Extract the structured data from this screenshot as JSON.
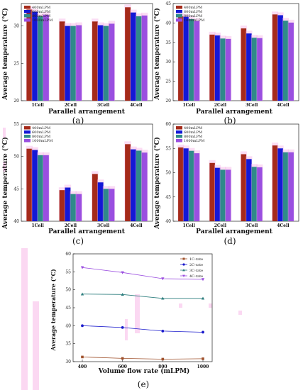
{
  "colors": {
    "400mLPM": "#a52a1a",
    "600mLPM": "#1418d6",
    "800mLPM": "#2f8a8a",
    "1000mLPM": "#9a4fe0",
    "1C": "#a0522d",
    "2C": "#1a1acc",
    "3C": "#2f7f7f",
    "4C": "#9b4ee0"
  },
  "chart_data": [
    {
      "panel": "(a)",
      "type": "bar",
      "ylabel": "Average temperature (°C)",
      "xlabel": "Parallel arrangement",
      "categories": [
        "1Cell",
        "2Cell",
        "3Cell",
        "4Cell"
      ],
      "ylim": [
        20,
        33
      ],
      "yticks": [
        "20",
        "25",
        "30"
      ],
      "series": [
        {
          "name": "400mLPM",
          "values": [
            32.2,
            30.6,
            30.6,
            32.5
          ]
        },
        {
          "name": "600mLPM",
          "values": [
            31.9,
            30.0,
            30.1,
            31.8
          ]
        },
        {
          "name": "800mLPM",
          "values": [
            31.3,
            30.0,
            30.0,
            31.3
          ]
        },
        {
          "name": "1000mLPM",
          "values": [
            31.5,
            30.1,
            30.3,
            31.4
          ]
        }
      ],
      "legend": "top-left"
    },
    {
      "panel": "(b)",
      "type": "bar",
      "ylabel": "Average temperature (°C)",
      "xlabel": "Parallel arrangement",
      "categories": [
        "1Cell",
        "2Cell",
        "3Cell",
        "4Cell"
      ],
      "ylim": [
        20,
        45
      ],
      "yticks": [
        "20",
        "25",
        "30",
        "35",
        "40",
        "45"
      ],
      "series": [
        {
          "name": "400mLPM",
          "values": [
            41.7,
            37.0,
            38.6,
            42.2
          ]
        },
        {
          "name": "600mLPM",
          "values": [
            41.6,
            36.8,
            37.3,
            42.0
          ]
        },
        {
          "name": "800mLPM",
          "values": [
            41.0,
            36.0,
            36.2,
            40.6
          ]
        },
        {
          "name": "1000mLPM",
          "values": [
            40.5,
            35.9,
            36.1,
            40.1
          ]
        }
      ],
      "legend": "top-left"
    },
    {
      "panel": "(c)",
      "type": "bar",
      "ylabel": "Average temperature (°C)",
      "xlabel": "Parallel arrangement",
      "categories": [
        "1Cell",
        "2Cell",
        "3Cell",
        "4Cell"
      ],
      "ylim": [
        40,
        55
      ],
      "yticks": [
        "40",
        "45",
        "50",
        "55"
      ],
      "series": [
        {
          "name": "400mLPM",
          "values": [
            51.2,
            44.8,
            47.3,
            51.9
          ]
        },
        {
          "name": "600mLPM",
          "values": [
            51.0,
            45.2,
            46.0,
            51.1
          ]
        },
        {
          "name": "800mLPM",
          "values": [
            50.2,
            44.2,
            45.0,
            50.9
          ]
        },
        {
          "name": "1000mLPM",
          "values": [
            50.2,
            44.2,
            45.0,
            50.6
          ]
        }
      ],
      "legend": "top-left"
    },
    {
      "panel": "(d)",
      "type": "bar",
      "ylabel": "Average temperature (°C)",
      "xlabel": "Parallel arrangement",
      "categories": [
        "1Cell",
        "2Cell",
        "3Cell",
        "4Cell"
      ],
      "ylim": [
        40,
        60
      ],
      "yticks": [
        "40",
        "45",
        "50",
        "55",
        "60"
      ],
      "series": [
        {
          "name": "400mLPM",
          "values": [
            55.2,
            52.0,
            53.8,
            55.6
          ]
        },
        {
          "name": "600mLPM",
          "values": [
            55.0,
            51.0,
            52.8,
            55.0
          ]
        },
        {
          "name": "800mLPM",
          "values": [
            54.5,
            50.6,
            51.2,
            54.2
          ]
        },
        {
          "name": "1000mLPM",
          "values": [
            54.0,
            50.6,
            51.1,
            54.2
          ]
        }
      ],
      "legend": "top-left"
    },
    {
      "panel": "(e)",
      "type": "line",
      "xlabel": "Volume flow rate (mLPM)",
      "ylabel": "Average temperature (°C)",
      "x": [
        400,
        600,
        800,
        1000
      ],
      "xlim": [
        400,
        1000
      ],
      "ylim": [
        30,
        60
      ],
      "xticks": [
        "400",
        "600",
        "800",
        "1000"
      ],
      "yticks": [
        "30",
        "35",
        "40",
        "45",
        "50",
        "55",
        "60"
      ],
      "series": [
        {
          "name": "1C-rate",
          "marker": "square",
          "values": [
            31.3,
            30.9,
            30.7,
            30.8
          ]
        },
        {
          "name": "2C-rate",
          "marker": "circle",
          "values": [
            40.0,
            39.5,
            38.5,
            38.2
          ]
        },
        {
          "name": "3C-rate",
          "marker": "triangle-up",
          "values": [
            48.8,
            48.7,
            47.6,
            47.6
          ]
        },
        {
          "name": "4C-rate",
          "marker": "triangle-down",
          "values": [
            56.2,
            54.8,
            53.1,
            52.9
          ]
        }
      ],
      "legend": "top-right"
    }
  ],
  "captions": [
    "(a)",
    "(b)",
    "(c)",
    "(d)",
    "(e)"
  ]
}
